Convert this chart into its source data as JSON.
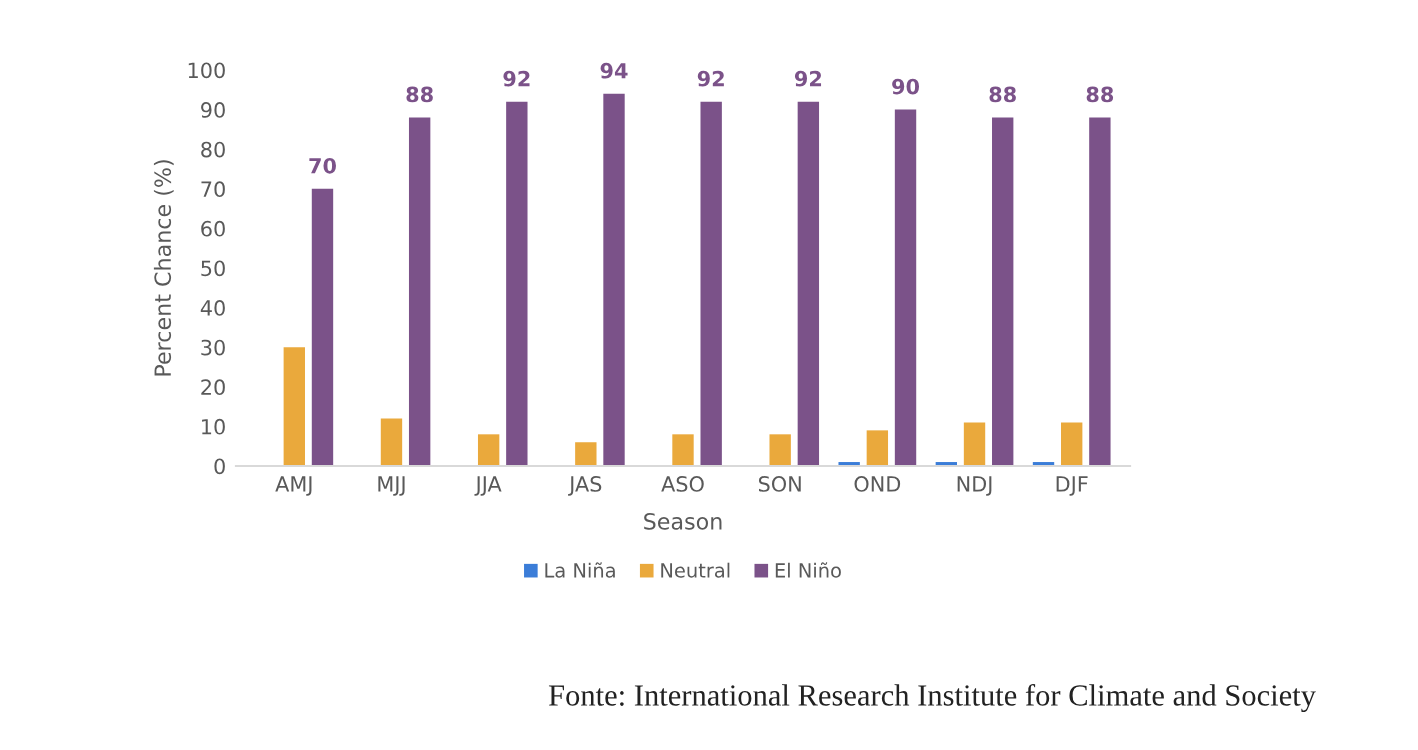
{
  "chart_data": {
    "type": "bar",
    "xlabel": "Season",
    "ylabel": "Percent Chance (%)",
    "categories": [
      "AMJ",
      "MJJ",
      "JJA",
      "JAS",
      "ASO",
      "SON",
      "OND",
      "NDJ",
      "DJF"
    ],
    "series": [
      {
        "name": "La Niña",
        "color": "#3b7dd8",
        "values": [
          0,
          0,
          0,
          0,
          0,
          0,
          1,
          1,
          1
        ]
      },
      {
        "name": "Neutral",
        "color": "#eaa93c",
        "values": [
          30,
          12,
          8,
          6,
          8,
          8,
          9,
          11,
          11
        ]
      },
      {
        "name": "El Niño",
        "color": "#7b5289",
        "values": [
          70,
          88,
          92,
          94,
          92,
          92,
          90,
          88,
          88
        ],
        "value_labels": [
          "70",
          "88",
          "92",
          "94",
          "92",
          "92",
          "90",
          "88",
          "88"
        ]
      }
    ],
    "ylim": [
      0,
      100
    ],
    "yticks": [
      0,
      10,
      20,
      30,
      40,
      50,
      60,
      70,
      80,
      90,
      100
    ],
    "grid": false,
    "legend": "bottom",
    "annotations": [
      "Fonte: International Research Institute for Climate and Society"
    ]
  }
}
